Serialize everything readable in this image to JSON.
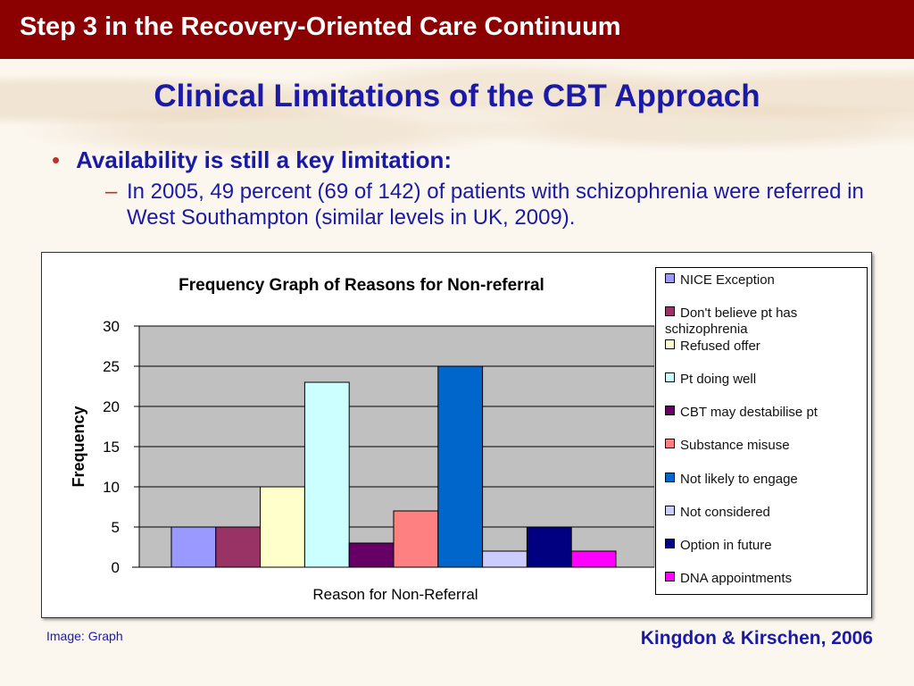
{
  "header": {
    "title": "Step 3 in the Recovery-Oriented Care Continuum"
  },
  "slide": {
    "title": "Clinical Limitations of the CBT Approach",
    "bullet": "Availability is still a key limitation:",
    "sub_bullet": "In 2005, 49 percent (69 of 142) of patients with schizophrenia were referred in West Southampton (similar levels in UK, 2009)."
  },
  "footer": {
    "image_credit": "Image: Graph",
    "citation": "Kingdon & Kirschen, 2006"
  },
  "chart_data": {
    "type": "bar",
    "title": "Frequency Graph of Reasons for Non-referral",
    "xlabel": "Reason for Non-Referral",
    "ylabel": "Frequency",
    "ylim": [
      0,
      30
    ],
    "yticks": [
      0,
      5,
      10,
      15,
      20,
      25,
      30
    ],
    "grid": true,
    "legend_position": "right",
    "series": [
      {
        "name": "NICE Exception",
        "value": 5,
        "color": "#9999ff"
      },
      {
        "name": "Don't believe pt has schizophrenia",
        "value": 5,
        "color": "#993366"
      },
      {
        "name": "Refused offer",
        "value": 10,
        "color": "#ffffcc"
      },
      {
        "name": "Pt doing well",
        "value": 23,
        "color": "#ccffff"
      },
      {
        "name": "CBT may destabilise pt",
        "value": 3,
        "color": "#660066"
      },
      {
        "name": "Substance misuse",
        "value": 7,
        "color": "#ff8080"
      },
      {
        "name": "Not likely to engage",
        "value": 25,
        "color": "#0066cc"
      },
      {
        "name": "Not considered",
        "value": 2,
        "color": "#ccccff"
      },
      {
        "name": "Option in future",
        "value": 5,
        "color": "#000080"
      },
      {
        "name": "DNA appointments",
        "value": 2,
        "color": "#ff00ff"
      }
    ]
  }
}
